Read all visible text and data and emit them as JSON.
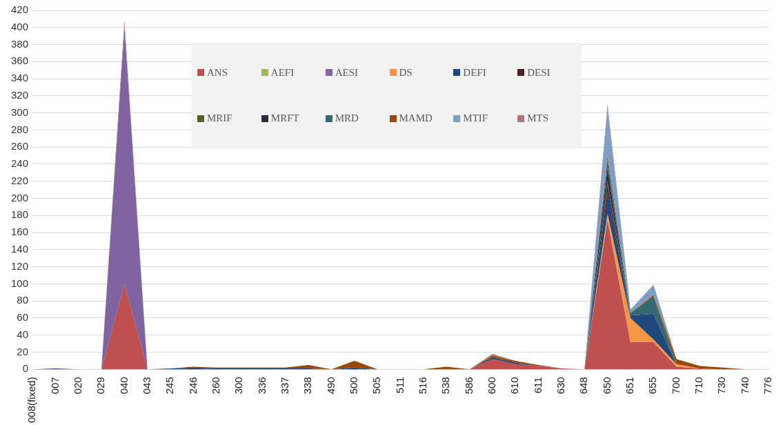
{
  "chart_data": {
    "type": "area",
    "stacked": true,
    "categories": [
      "008(fixed)",
      "007",
      "020",
      "029",
      "040",
      "043",
      "245",
      "246",
      "260",
      "300",
      "336",
      "337",
      "338",
      "490",
      "500",
      "505",
      "511",
      "516",
      "538",
      "586",
      "600",
      "610",
      "611",
      "630",
      "648",
      "650",
      "651",
      "655",
      "700",
      "710",
      "730",
      "740",
      "776"
    ],
    "ylim": [
      0,
      420
    ],
    "yticks": [
      0,
      20,
      40,
      60,
      80,
      100,
      120,
      140,
      160,
      180,
      200,
      220,
      240,
      260,
      280,
      300,
      320,
      340,
      360,
      380,
      400,
      420
    ],
    "grid": "y",
    "legend": "top",
    "series": [
      {
        "name": "ANS",
        "color": "#c0504d",
        "values": [
          null,
          null,
          null,
          0,
          100,
          0,
          null,
          null,
          null,
          null,
          null,
          null,
          null,
          null,
          null,
          null,
          null,
          null,
          null,
          0,
          12,
          6,
          4,
          1,
          0,
          175,
          32,
          32,
          3,
          1,
          0,
          null,
          null
        ]
      },
      {
        "name": "AEFI",
        "color": "#9bbb59",
        "values": [
          null,
          null,
          null,
          null,
          null,
          null,
          null,
          null,
          null,
          null,
          null,
          null,
          null,
          null,
          null,
          null,
          null,
          null,
          null,
          null,
          null,
          null,
          null,
          null,
          0,
          2,
          0,
          null,
          null,
          null,
          null,
          null,
          null
        ]
      },
      {
        "name": "AESI",
        "color": "#8064a2",
        "values": [
          null,
          null,
          null,
          0,
          300,
          0,
          null,
          null,
          null,
          null,
          null,
          null,
          null,
          null,
          null,
          null,
          null,
          null,
          null,
          null,
          null,
          null,
          null,
          null,
          null,
          null,
          null,
          null,
          null,
          null,
          null,
          null,
          null
        ]
      },
      {
        "name": "DS",
        "color": "#f79646",
        "values": [
          null,
          null,
          null,
          null,
          null,
          null,
          null,
          null,
          null,
          null,
          null,
          null,
          null,
          null,
          null,
          null,
          null,
          null,
          null,
          null,
          null,
          null,
          null,
          null,
          0,
          5,
          28,
          3,
          3,
          0,
          null,
          null,
          null
        ]
      },
      {
        "name": "DEFI",
        "color": "#1f497d",
        "values": [
          0,
          1,
          0,
          null,
          null,
          0,
          1,
          2,
          1,
          1,
          1,
          1,
          1,
          0,
          2,
          0,
          null,
          null,
          null,
          0,
          2,
          2,
          0,
          null,
          0,
          25,
          3,
          30,
          0,
          null,
          null,
          null,
          null
        ]
      },
      {
        "name": "DESI",
        "color": "#4f2121",
        "values": [
          null,
          null,
          null,
          null,
          null,
          null,
          null,
          null,
          null,
          null,
          null,
          null,
          null,
          null,
          null,
          null,
          null,
          null,
          null,
          null,
          null,
          null,
          null,
          null,
          0,
          10,
          0,
          null,
          null,
          null,
          null,
          null,
          null
        ]
      },
      {
        "name": "MRIF",
        "color": "#4f6228",
        "values": [
          null,
          null,
          null,
          null,
          null,
          null,
          null,
          null,
          null,
          null,
          null,
          null,
          null,
          null,
          null,
          null,
          null,
          null,
          null,
          null,
          null,
          null,
          null,
          null,
          0,
          3,
          0,
          null,
          null,
          null,
          null,
          null,
          null
        ]
      },
      {
        "name": "MRFT",
        "color": "#2c2a3f",
        "values": [
          null,
          null,
          null,
          null,
          null,
          null,
          null,
          null,
          null,
          null,
          null,
          null,
          null,
          null,
          null,
          null,
          null,
          null,
          null,
          null,
          null,
          null,
          null,
          null,
          0,
          15,
          0,
          null,
          null,
          null,
          null,
          null,
          null
        ]
      },
      {
        "name": "MRD",
        "color": "#31696f",
        "values": [
          null,
          null,
          null,
          null,
          null,
          null,
          null,
          null,
          null,
          null,
          null,
          null,
          null,
          null,
          null,
          null,
          null,
          null,
          null,
          null,
          null,
          null,
          null,
          null,
          0,
          10,
          3,
          20,
          0,
          null,
          null,
          null,
          null
        ]
      },
      {
        "name": "MAMD",
        "color": "#984807",
        "values": [
          null,
          null,
          null,
          null,
          null,
          null,
          0,
          1,
          1,
          1,
          1,
          1,
          4,
          0,
          8,
          0,
          null,
          0,
          3,
          0,
          2,
          2,
          1,
          0,
          0,
          5,
          0,
          2,
          6,
          3,
          2,
          0,
          null
        ]
      },
      {
        "name": "MTIF",
        "color": "#7f9ec6",
        "values": [
          null,
          null,
          null,
          null,
          null,
          null,
          null,
          null,
          null,
          null,
          null,
          null,
          null,
          null,
          null,
          null,
          null,
          null,
          null,
          null,
          null,
          null,
          null,
          null,
          0,
          55,
          4,
          12,
          0,
          null,
          null,
          null,
          null
        ]
      },
      {
        "name": "MTS",
        "color": "#b07676",
        "values": [
          null,
          null,
          null,
          0,
          8,
          0,
          null,
          null,
          null,
          null,
          null,
          null,
          null,
          null,
          null,
          null,
          null,
          null,
          null,
          0,
          2,
          0,
          null,
          null,
          0,
          5,
          0,
          null,
          null,
          null,
          null,
          null,
          null
        ]
      }
    ]
  }
}
